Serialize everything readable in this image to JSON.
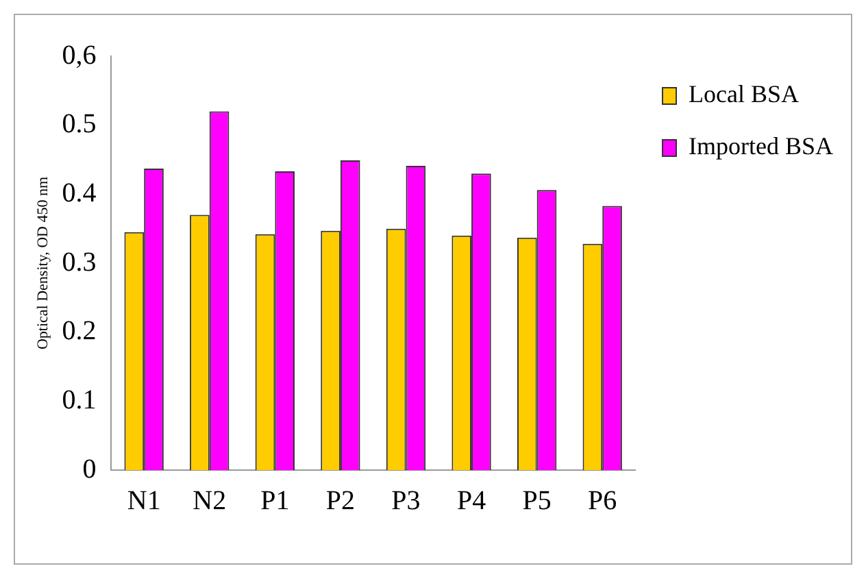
{
  "chart_data": {
    "type": "bar",
    "ylabel": "Optical Density, OD 450 nm",
    "categories": [
      "N1",
      "N2",
      "P1",
      "P2",
      "P3",
      "P4",
      "P5",
      "P6"
    ],
    "series": [
      {
        "name": "Local BSA",
        "color": "#ffcc00",
        "values": [
          0.345,
          0.37,
          0.342,
          0.347,
          0.35,
          0.34,
          0.337,
          0.328
        ]
      },
      {
        "name": "Imported BSA",
        "color": "#ff00ff",
        "values": [
          0.437,
          0.52,
          0.433,
          0.449,
          0.441,
          0.43,
          0.406,
          0.383
        ]
      }
    ],
    "ylim": [
      0,
      0.6
    ],
    "yticks": [
      0,
      0.1,
      0.2,
      0.3,
      0.4,
      0.5,
      {
        "value": 0.6,
        "label": "0,6"
      }
    ],
    "grid": false,
    "legend": "top right"
  }
}
